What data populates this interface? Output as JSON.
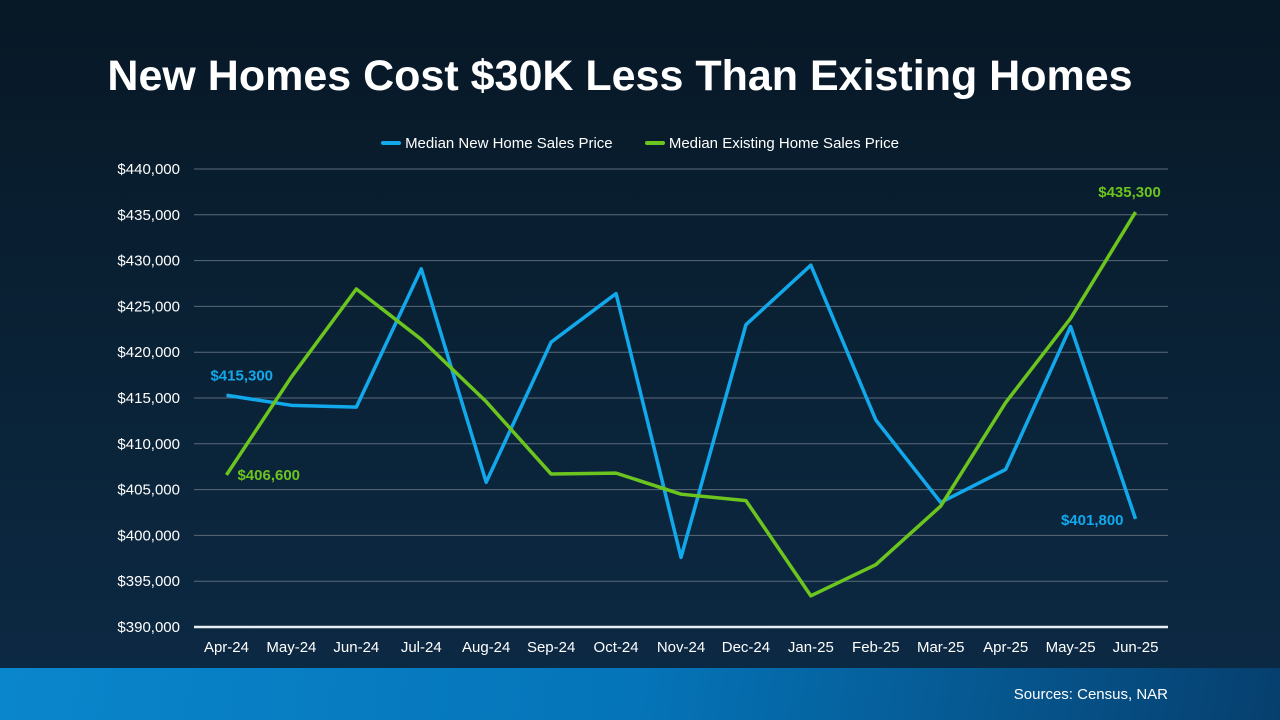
{
  "chart_data": {
    "type": "line",
    "title": "New Homes Cost $30K Less Than Existing Homes",
    "categories": [
      "Apr-24",
      "May-24",
      "Jun-24",
      "Jul-24",
      "Aug-24",
      "Sep-24",
      "Oct-24",
      "Nov-24",
      "Dec-24",
      "Jan-25",
      "Feb-25",
      "Mar-25",
      "Apr-25",
      "May-25",
      "Jun-25"
    ],
    "ylim": [
      390000,
      440000
    ],
    "yticks": [
      390000,
      395000,
      400000,
      405000,
      410000,
      415000,
      420000,
      425000,
      430000,
      435000,
      440000
    ],
    "ytick_labels": [
      "$390,000",
      "$395,000",
      "$400,000",
      "$405,000",
      "$410,000",
      "$415,000",
      "$420,000",
      "$425,000",
      "$430,000",
      "$435,000",
      "$440,000"
    ],
    "grid": true,
    "legend_position": "top",
    "series": [
      {
        "name": "Median New Home Sales Price",
        "color": "#12a9ec",
        "values": [
          415300,
          414200,
          414000,
          429100,
          405800,
          421100,
          426400,
          397600,
          423000,
          429500,
          412600,
          403600,
          407200,
          422800,
          401800
        ],
        "labels": [
          {
            "index": 0,
            "text": "$415,300"
          },
          {
            "index": 14,
            "text": "$401,800"
          }
        ]
      },
      {
        "name": "Median Existing Home Sales Price",
        "color": "#6cc51e",
        "values": [
          406600,
          417300,
          426900,
          421400,
          414600,
          406700,
          406800,
          404500,
          403800,
          393400,
          396800,
          403200,
          414500,
          423700,
          435300
        ],
        "labels": [
          {
            "index": 0,
            "text": "$406,600"
          },
          {
            "index": 14,
            "text": "$435,300"
          }
        ]
      }
    ]
  },
  "footer": {
    "source": "Sources: Census, NAR"
  }
}
